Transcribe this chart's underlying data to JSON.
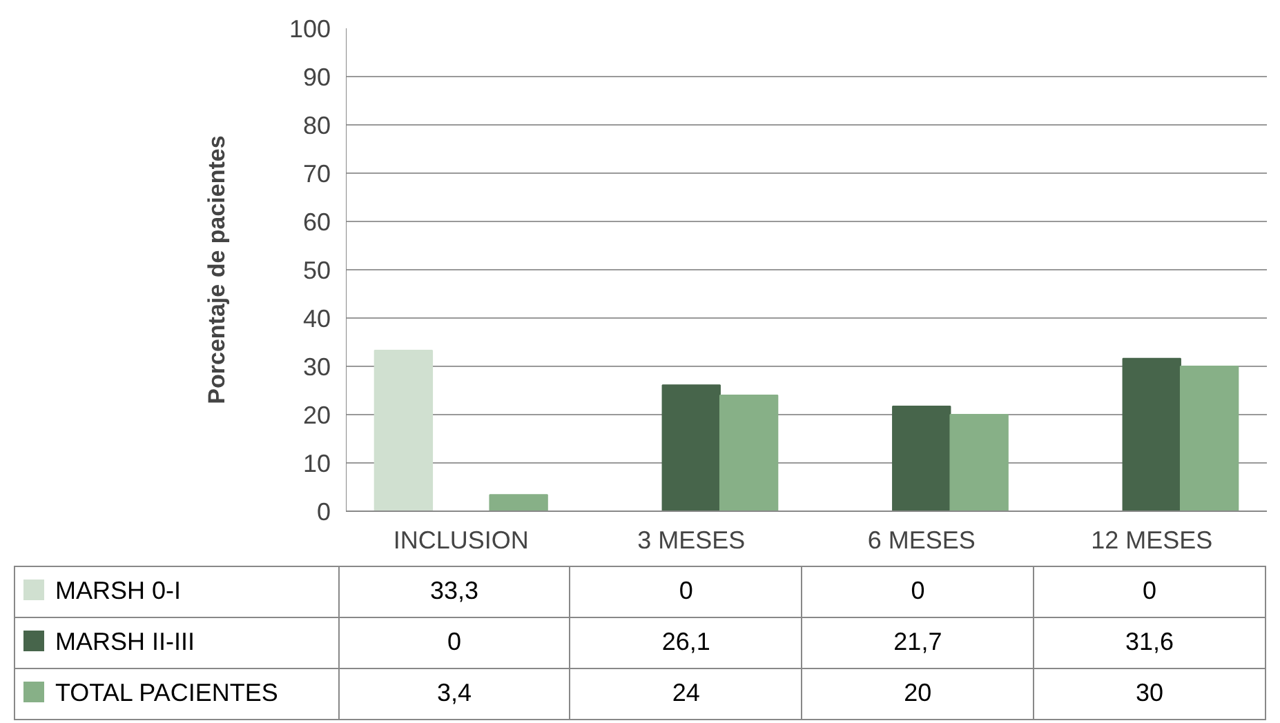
{
  "chart_data": {
    "type": "bar",
    "ylabel": "Porcentaje de pacientes",
    "categories": [
      "INCLUSION",
      "3 MESES",
      "6 MESES",
      "12 MESES"
    ],
    "series": [
      {
        "name": "MARSH 0-I",
        "color": "#d0e0d0",
        "values": [
          33.3,
          0,
          0,
          0
        ],
        "value_labels": [
          "33,3",
          "0",
          "0",
          "0"
        ]
      },
      {
        "name": "MARSH II-III",
        "color": "#47654b",
        "values": [
          0,
          26.1,
          21.7,
          31.6
        ],
        "value_labels": [
          "0",
          "26,1",
          "21,7",
          "31,6"
        ]
      },
      {
        "name": "TOTAL PACIENTES",
        "color": "#87b087",
        "values": [
          3.4,
          24,
          20,
          30
        ],
        "value_labels": [
          "3,4",
          "24",
          "20",
          "30"
        ]
      }
    ],
    "ylim": [
      0,
      100
    ],
    "yticks": [
      0,
      10,
      20,
      30,
      40,
      50,
      60,
      70,
      80,
      90,
      100
    ],
    "grid": "y",
    "legend": "bottom left",
    "data_labels": true
  }
}
